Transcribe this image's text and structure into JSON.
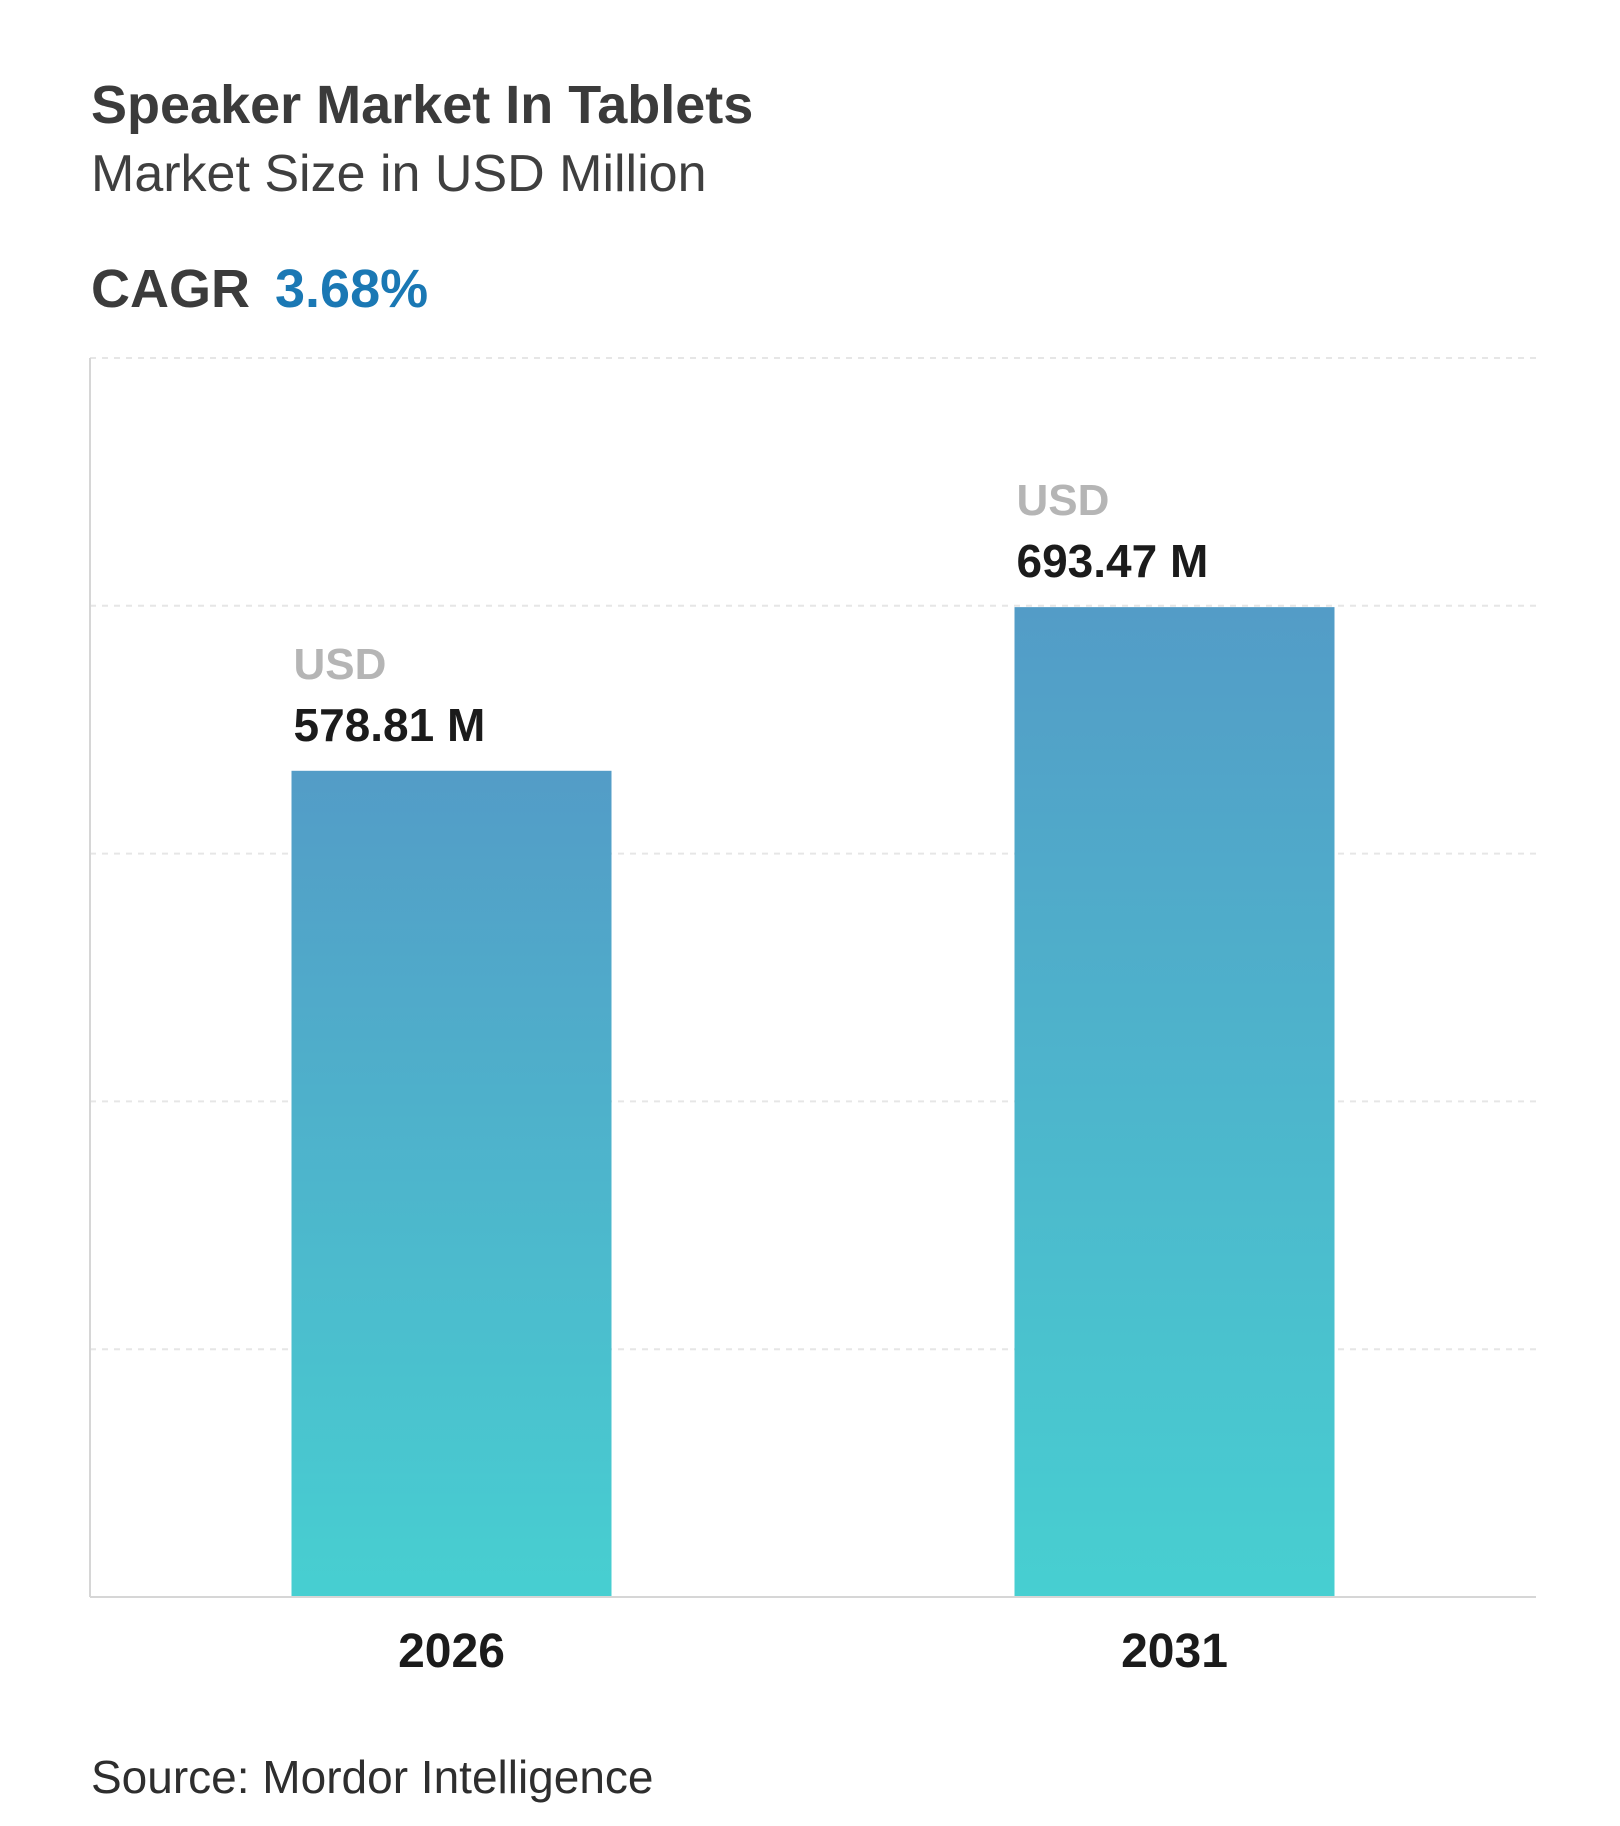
{
  "header": {
    "title": "Speaker Market In Tablets",
    "subtitle": "Market Size in USD Million",
    "cagr_label": "CAGR",
    "cagr_value": "3.68%"
  },
  "footer": {
    "source": "Source: Mordor Intelligence"
  },
  "colors": {
    "accent": "#1a78b4",
    "bar_top": "#539cc7",
    "bar_bottom": "#47cfd1",
    "currency_label": "#b5b5b5",
    "value_label": "#1b1b1b",
    "grid": "#e6e6e6",
    "axis": "#d6d6d6"
  },
  "chart_data": {
    "type": "bar",
    "categories": [
      "2026",
      "2031"
    ],
    "values": [
      578.81,
      693.47
    ],
    "currency_prefix": "USD",
    "value_labels": [
      "578.81 M",
      "693.47 M"
    ],
    "ylim": [
      0,
      868
    ],
    "gridlines": 5,
    "grid": true,
    "legend": "none"
  }
}
